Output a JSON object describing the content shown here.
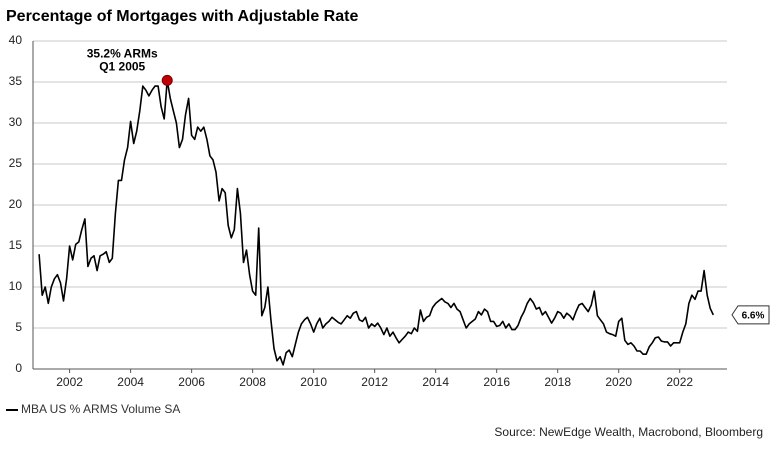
{
  "chart_data": {
    "type": "line",
    "title": "Percentage of Mortgages with Adjustable Rate",
    "source": "Source: NewEdge Wealth, Macrobond, Bloomberg",
    "annotations": [
      "35.2% ARMs",
      "Q1 2005"
    ],
    "end_label": "6.6%",
    "xlim": [
      2000.8,
      2023.55
    ],
    "xticks": [
      2002,
      2004,
      2006,
      2008,
      2010,
      2012,
      2014,
      2016,
      2018,
      2020,
      2022
    ],
    "ylim": [
      0,
      40
    ],
    "yticks": [
      0,
      5,
      10,
      15,
      20,
      25,
      30,
      35,
      40
    ],
    "grid": true,
    "legend": "bottom-left",
    "x": [
      2001,
      2001.1,
      2001.2,
      2001.3,
      2001.4,
      2001.5,
      2001.6,
      2001.7,
      2001.8,
      2001.9,
      2002,
      2002.1,
      2002.2,
      2002.3,
      2002.4,
      2002.5,
      2002.6,
      2002.7,
      2002.8,
      2002.9,
      2003,
      2003.1,
      2003.2,
      2003.3,
      2003.4,
      2003.5,
      2003.6,
      2003.7,
      2003.8,
      2003.9,
      2004,
      2004.1,
      2004.2,
      2004.3,
      2004.4,
      2004.5,
      2004.6,
      2004.7,
      2004.8,
      2004.9,
      2005,
      2005.1,
      2005.2,
      2005.3,
      2005.4,
      2005.5,
      2005.6,
      2005.7,
      2005.8,
      2005.9,
      2006,
      2006.1,
      2006.2,
      2006.3,
      2006.4,
      2006.5,
      2006.6,
      2006.7,
      2006.8,
      2006.9,
      2007,
      2007.1,
      2007.2,
      2007.3,
      2007.4,
      2007.5,
      2007.6,
      2007.7,
      2007.8,
      2007.9,
      2008,
      2008.1,
      2008.2,
      2008.3,
      2008.4,
      2008.5,
      2008.6,
      2008.7,
      2008.8,
      2008.9,
      2009,
      2009.1,
      2009.2,
      2009.3,
      2009.4,
      2009.5,
      2009.6,
      2009.7,
      2009.8,
      2009.9,
      2010,
      2010.1,
      2010.2,
      2010.3,
      2010.4,
      2010.5,
      2010.6,
      2010.7,
      2010.8,
      2010.9,
      2011,
      2011.1,
      2011.2,
      2011.3,
      2011.4,
      2011.5,
      2011.6,
      2011.7,
      2011.8,
      2011.9,
      2012,
      2012.1,
      2012.2,
      2012.3,
      2012.4,
      2012.5,
      2012.6,
      2012.7,
      2012.8,
      2012.9,
      2013,
      2013.1,
      2013.2,
      2013.3,
      2013.4,
      2013.5,
      2013.6,
      2013.7,
      2013.8,
      2013.9,
      2014,
      2014.1,
      2014.2,
      2014.3,
      2014.4,
      2014.5,
      2014.6,
      2014.7,
      2014.8,
      2014.9,
      2015,
      2015.1,
      2015.2,
      2015.3,
      2015.4,
      2015.5,
      2015.6,
      2015.7,
      2015.8,
      2015.9,
      2016,
      2016.1,
      2016.2,
      2016.3,
      2016.4,
      2016.5,
      2016.6,
      2016.7,
      2016.8,
      2016.9,
      2017,
      2017.1,
      2017.2,
      2017.3,
      2017.4,
      2017.5,
      2017.6,
      2017.7,
      2017.8,
      2017.9,
      2018,
      2018.1,
      2018.2,
      2018.3,
      2018.4,
      2018.5,
      2018.6,
      2018.7,
      2018.8,
      2018.9,
      2019,
      2019.1,
      2019.2,
      2019.3,
      2019.4,
      2019.5,
      2019.6,
      2019.7,
      2019.8,
      2019.9,
      2020,
      2020.1,
      2020.2,
      2020.3,
      2020.4,
      2020.5,
      2020.6,
      2020.7,
      2020.8,
      2020.9,
      2021,
      2021.1,
      2021.2,
      2021.3,
      2021.4,
      2021.5,
      2021.6,
      2021.7,
      2021.8,
      2021.9,
      2022,
      2022.1,
      2022.2,
      2022.3,
      2022.4,
      2022.5,
      2022.6,
      2022.7,
      2022.8,
      2022.9,
      2023,
      2023.1
    ],
    "series": [
      {
        "name": "MBA US % ARMS Volume SA",
        "color": "#000000",
        "values": [
          14,
          9,
          10,
          8,
          10,
          11,
          11.5,
          10.5,
          8.3,
          11,
          15,
          13.3,
          15.2,
          15.5,
          17,
          18.3,
          12.5,
          13.5,
          13.8,
          12,
          13.8,
          14,
          14.3,
          13,
          13.5,
          19,
          23,
          23,
          25.5,
          27,
          30.2,
          27.5,
          29,
          31.5,
          34.5,
          34,
          33.3,
          34,
          34.5,
          34.5,
          32,
          30.5,
          35.2,
          33,
          31.5,
          30,
          27,
          28,
          31,
          33,
          28.5,
          28,
          29.5,
          29,
          29.5,
          28,
          26,
          25.5,
          24,
          20.5,
          22,
          21.5,
          17.5,
          16,
          17,
          22,
          19,
          13,
          14.5,
          11.5,
          9.5,
          9,
          17.2,
          6.5,
          7.5,
          10,
          6,
          2.5,
          1,
          1.5,
          0.5,
          2,
          2.3,
          1.5,
          3,
          4.5,
          5.5,
          6,
          6.3,
          5.5,
          4.5,
          5.5,
          6.2,
          5,
          5.5,
          5.8,
          6.3,
          6,
          5.7,
          5.5,
          6,
          6.5,
          6.2,
          6.8,
          7,
          6,
          5.8,
          6.3,
          5,
          5.5,
          5.2,
          5.6,
          5,
          4.2,
          5,
          4,
          4.5,
          3.8,
          3.2,
          3.6,
          4,
          4.5,
          4.3,
          5,
          4.6,
          7.2,
          5.8,
          6.3,
          6.5,
          7.5,
          8,
          8.3,
          8.6,
          8.2,
          8,
          7.5,
          8,
          7.3,
          7,
          6,
          5,
          5.5,
          5.8,
          6.1,
          7,
          6.6,
          7.3,
          7,
          5.8,
          5.8,
          5.2,
          5.3,
          5.8,
          5,
          5.5,
          4.8,
          4.8,
          5.3,
          6.3,
          7,
          8,
          8.6,
          8.1,
          7.3,
          7.5,
          6.6,
          7,
          6.3,
          5.6,
          6.2,
          7,
          6.8,
          6.2,
          6.8,
          6.5,
          6,
          7,
          7.8,
          8,
          7.5,
          7,
          7.8,
          9.5,
          6.5,
          6,
          5.5,
          4.5,
          4.3,
          4.2,
          4,
          5.8,
          6.2,
          3.5,
          3,
          3.2,
          2.8,
          2.2,
          2.2,
          1.8,
          1.8,
          2.7,
          3.2,
          3.8,
          3.9,
          3.4,
          3.3,
          3.3,
          2.8,
          3.2,
          3.2,
          3.2,
          4.5,
          5.5,
          8,
          9,
          8.5,
          9.5,
          9.5,
          12,
          9,
          7.4,
          6.6
        ]
      }
    ]
  }
}
